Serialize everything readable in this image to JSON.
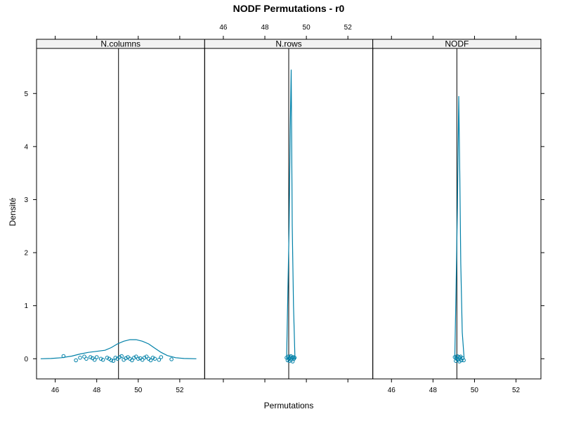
{
  "chart_data": {
    "type": "line",
    "title": "NODF Permutations - r0",
    "xlabel": "Permutations",
    "ylabel": "Densité",
    "xlim": [
      45.1,
      53.2
    ],
    "ylim": [
      -0.38,
      5.85
    ],
    "x_ticks": [
      46,
      48,
      50,
      52
    ],
    "y_ticks": [
      0,
      1,
      2,
      3,
      4,
      5
    ],
    "panels": [
      {
        "strip": "N.columns",
        "observed": 49.05,
        "density_x": [
          45.3,
          45.8,
          46.3,
          46.8,
          47.2,
          47.6,
          48.0,
          48.4,
          48.7,
          49.0,
          49.3,
          49.6,
          49.9,
          50.2,
          50.5,
          50.8,
          51.1,
          51.4,
          51.8,
          52.2,
          52.8
        ],
        "density_y": [
          0.0,
          0.005,
          0.02,
          0.05,
          0.09,
          0.12,
          0.14,
          0.16,
          0.21,
          0.28,
          0.33,
          0.36,
          0.36,
          0.33,
          0.28,
          0.2,
          0.12,
          0.06,
          0.02,
          0.005,
          0.0
        ],
        "points_x": [
          46.4,
          47.0,
          47.2,
          47.4,
          47.5,
          47.7,
          47.8,
          47.9,
          48.0,
          48.2,
          48.3,
          48.5,
          48.6,
          48.7,
          48.8,
          48.9,
          49.0,
          49.1,
          49.2,
          49.3,
          49.4,
          49.5,
          49.6,
          49.7,
          49.8,
          49.9,
          50.0,
          50.1,
          50.2,
          50.3,
          50.4,
          50.5,
          50.6,
          50.7,
          50.8,
          51.0,
          51.1,
          51.6
        ],
        "points_y": [
          0.05,
          -0.03,
          0.02,
          0.04,
          0.0,
          0.03,
          0.01,
          -0.02,
          0.03,
          0.0,
          -0.02,
          0.02,
          0.0,
          -0.03,
          -0.04,
          0.02,
          0.0,
          0.03,
          0.05,
          -0.02,
          0.01,
          0.03,
          0.0,
          -0.03,
          0.02,
          0.04,
          0.0,
          0.01,
          -0.02,
          0.02,
          0.04,
          0.0,
          -0.03,
          0.02,
          0.0,
          -0.02,
          0.03,
          -0.01
        ]
      },
      {
        "strip": "N.rows",
        "observed": 49.15,
        "density_x": [
          49.05,
          49.12,
          49.17,
          49.22,
          49.27,
          49.32,
          49.38,
          49.45
        ],
        "density_y": [
          0.0,
          1.5,
          2.5,
          4.3,
          5.45,
          2.5,
          1.0,
          0.0
        ],
        "points_x": [
          49.05,
          49.1,
          49.13,
          49.16,
          49.19,
          49.22,
          49.25,
          49.28,
          49.31,
          49.34,
          49.37,
          49.4,
          49.43
        ],
        "points_y": [
          0.02,
          -0.03,
          0.04,
          0.0,
          -0.04,
          0.03,
          0.05,
          -0.02,
          0.02,
          -0.05,
          0.03,
          0.0,
          0.02
        ]
      },
      {
        "strip": "NODF",
        "observed": 49.15,
        "density_x": [
          49.05,
          49.12,
          49.18,
          49.24,
          49.29,
          49.34,
          49.41,
          49.5
        ],
        "density_y": [
          0.0,
          1.5,
          2.9,
          4.95,
          3.5,
          1.8,
          0.5,
          0.0
        ],
        "points_x": [
          49.05,
          49.1,
          49.14,
          49.17,
          49.2,
          49.24,
          49.27,
          49.3,
          49.33,
          49.37,
          49.42,
          49.48
        ],
        "points_y": [
          0.03,
          -0.04,
          0.0,
          0.05,
          -0.02,
          0.03,
          -0.05,
          0.02,
          0.04,
          -0.03,
          0.01,
          -0.03
        ]
      }
    ],
    "series_color": "#0080a8",
    "observed_line_color": "#000000",
    "strip_color": "#f2f2f2",
    "grid": false
  }
}
